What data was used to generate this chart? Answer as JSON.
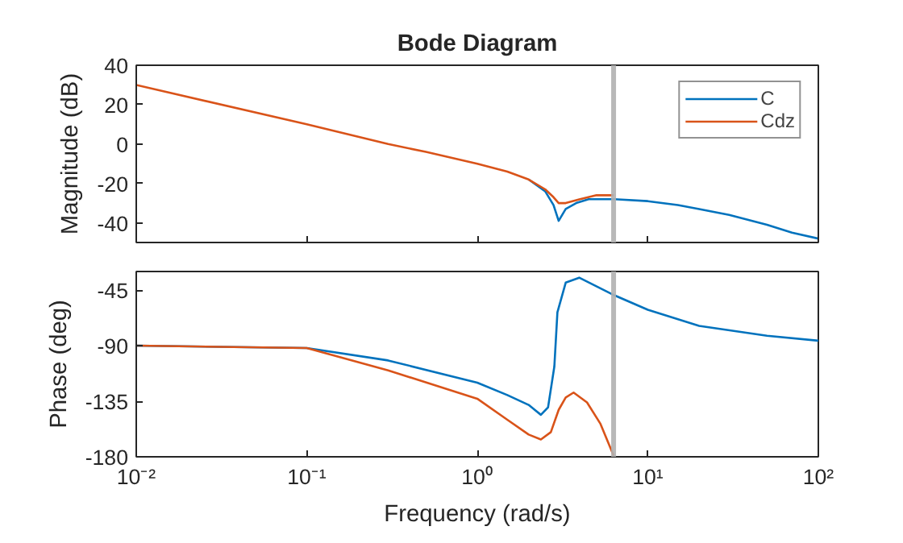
{
  "chart_data": [
    {
      "type": "line",
      "title": "Bode Diagram",
      "ylabel": "Magnitude (dB)",
      "log": "x",
      "grid": false,
      "legend": "top right",
      "tick_labels": "y",
      "line_style": "solid",
      "marker": "none",
      "xlim": [
        0.01,
        100
      ],
      "xticks": [
        {
          "value": 0.01,
          "label": null
        },
        {
          "value": 0.1,
          "label": null
        },
        {
          "value": 1,
          "label": null
        },
        {
          "value": 10,
          "label": null
        },
        {
          "value": 100,
          "label": null
        }
      ],
      "ylim": [
        -50,
        40
      ],
      "yticks": [
        -40,
        -20,
        0,
        20,
        40
      ],
      "ref_lines": [
        {
          "axis": "x",
          "value": 6.3,
          "color": "#b0b0b0"
        }
      ],
      "series": [
        {
          "name": "C",
          "color": "#0072bd",
          "x": [
            2,
            2.5,
            2.8,
            3.0,
            3.3,
            3.8,
            4.5,
            6.3,
            10,
            15,
            20,
            30,
            50,
            70,
            100
          ],
          "values": [
            -18,
            -24,
            -31,
            -39,
            -33,
            -30,
            -28,
            -28,
            -29,
            -31,
            -33,
            -36,
            -41,
            -45,
            -48
          ]
        },
        {
          "name": "Cdz",
          "color": "#d95319",
          "x": [
            0.01,
            0.1,
            0.3,
            0.5,
            1,
            1.5,
            2,
            2.5,
            2.8,
            3.0,
            3.3,
            4,
            5,
            6.3
          ],
          "values": [
            30,
            10,
            0,
            -4,
            -10,
            -14,
            -18,
            -23,
            -27,
            -30,
            -30,
            -28,
            -26,
            -26
          ]
        }
      ]
    },
    {
      "type": "line",
      "xlabel": "Frequency (rad/s)",
      "ylabel": "Phase (deg)",
      "log": "x",
      "grid": false,
      "line_style": "solid",
      "marker": "none",
      "xlim": [
        0.01,
        100
      ],
      "xticks": [
        {
          "value": 0.01,
          "label": "10⁻²"
        },
        {
          "value": 0.1,
          "label": "10⁻¹"
        },
        {
          "value": 1,
          "label": "10⁰"
        },
        {
          "value": 10,
          "label": "10¹"
        },
        {
          "value": 100,
          "label": "10²"
        }
      ],
      "ylim": [
        -180,
        -30
      ],
      "yticks": [
        -180,
        -135,
        -90,
        -45
      ],
      "ref_lines": [
        {
          "axis": "x",
          "value": 6.3,
          "color": "#b0b0b0"
        }
      ],
      "series": [
        {
          "color": "#0072bd",
          "x": [
            0.01,
            0.1,
            0.3,
            1,
            1.5,
            2,
            2.36,
            2.6,
            2.83,
            2.95,
            3.3,
            3.96,
            6.3,
            10,
            20,
            50,
            100
          ],
          "values": [
            -90,
            -92,
            -102,
            -120,
            -130,
            -138,
            -146,
            -140,
            -107,
            -63,
            -39,
            -35,
            -49,
            -61,
            -74,
            -82,
            -86
          ]
        },
        {
          "color": "#d95319",
          "x": [
            0.01,
            0.1,
            0.3,
            1,
            1.5,
            2,
            2.36,
            2.7,
            3.0,
            3.3,
            3.67,
            4.4,
            5.26,
            6.3
          ],
          "values": [
            -90,
            -92,
            -110,
            -133,
            -150,
            -162,
            -166,
            -160,
            -142,
            -132,
            -128,
            -136,
            -153,
            -179
          ]
        }
      ]
    }
  ]
}
